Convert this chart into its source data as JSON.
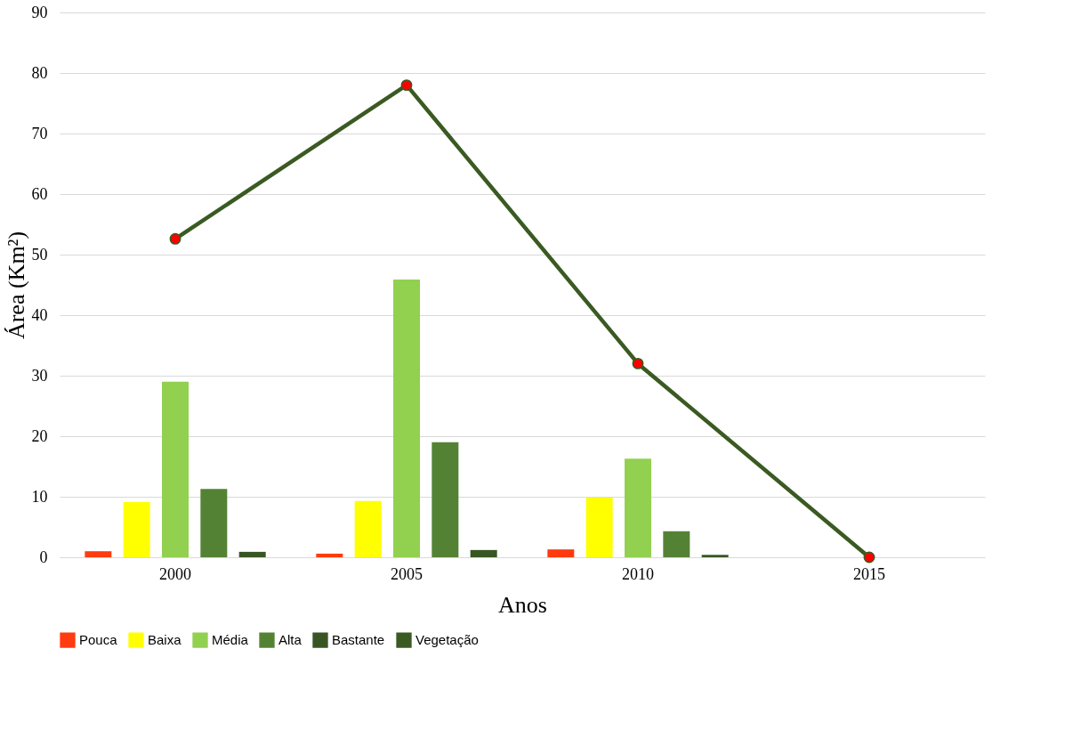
{
  "chart_data": {
    "type": "bar",
    "xlabel": "Anos",
    "ylabel": "Área (Km²)",
    "categories": [
      "2000",
      "2005",
      "2010",
      "2015"
    ],
    "series": [
      {
        "name": "Pouca",
        "color": "#ff3b0f",
        "values": [
          1.0,
          0.6,
          1.3,
          0
        ]
      },
      {
        "name": "Baixa",
        "color": "#ffff00",
        "values": [
          9.1,
          9.3,
          9.9,
          0
        ]
      },
      {
        "name": "Média",
        "color": "#92d050",
        "values": [
          29.0,
          45.9,
          16.3,
          0
        ]
      },
      {
        "name": "Alta",
        "color": "#548235",
        "values": [
          11.3,
          19.0,
          4.3,
          0
        ]
      },
      {
        "name": "Bastante",
        "color": "#375623",
        "values": [
          0.9,
          1.2,
          0.4,
          0
        ]
      },
      {
        "name": "Vegetação",
        "type": "line",
        "color": "#3a5a22",
        "marker": "circle",
        "values": [
          52.6,
          78.0,
          32.0,
          0
        ]
      }
    ],
    "ylim": [
      0,
      90
    ],
    "yticks": [
      0,
      10,
      20,
      30,
      40,
      50,
      60,
      70,
      80,
      90
    ],
    "grid": "y",
    "legend": "bottom"
  }
}
